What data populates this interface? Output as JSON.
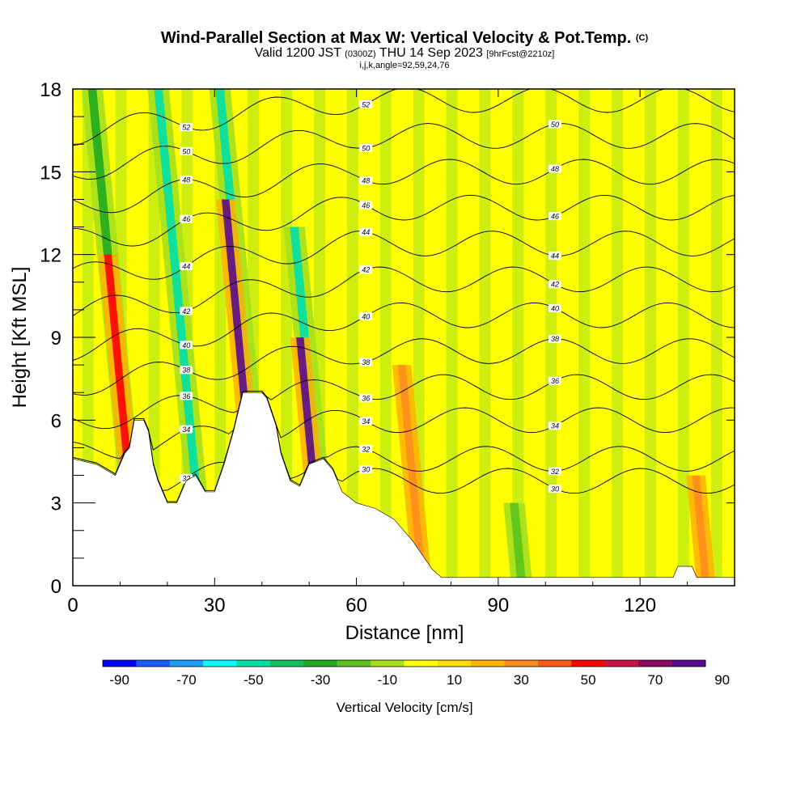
{
  "title": {
    "main": "Wind-Parallel Section at Max W: Vertical Velocity & Pot.Temp.",
    "main_suffix": "(C)",
    "valid_prefix": "Valid 1200 JST",
    "valid_utc": "(0300Z)",
    "valid_date": "THU 14 Sep 2023",
    "forecast": "[9hrFcst@2210z]",
    "params": "i,j,k,angle=92,59,24,76"
  },
  "colorbar": {
    "label": "Vertical Velocity [cm/s]",
    "tick_labels": [
      "-90",
      "-70",
      "-50",
      "-30",
      "-10",
      "10",
      "30",
      "50",
      "70",
      "90"
    ],
    "bins": [
      {
        "color": "#0000ff"
      },
      {
        "color": "#1a5cff"
      },
      {
        "color": "#1c9dff"
      },
      {
        "color": "#00ffff"
      },
      {
        "color": "#00e0a8"
      },
      {
        "color": "#10c060"
      },
      {
        "color": "#1faa1f"
      },
      {
        "color": "#5cc31c"
      },
      {
        "color": "#a6e01c"
      },
      {
        "color": "#ffff00"
      },
      {
        "color": "#ffdc00"
      },
      {
        "color": "#ffb400"
      },
      {
        "color": "#ff8c1e"
      },
      {
        "color": "#ff5a14"
      },
      {
        "color": "#ff0000"
      },
      {
        "color": "#c81446"
      },
      {
        "color": "#8c0a64"
      },
      {
        "color": "#5a0a8c"
      }
    ]
  },
  "chart_data": {
    "type": "heatmap",
    "xlabel": "Distance [nm]",
    "ylabel": "Height [Kft MSL]",
    "xlim": [
      0,
      140
    ],
    "ylim": [
      0,
      18
    ],
    "x_ticks": [
      0,
      30,
      60,
      90,
      120
    ],
    "y_ticks": [
      0,
      3,
      6,
      9,
      12,
      15,
      18
    ],
    "background_color": "#ffff00",
    "terrain": [
      [
        0,
        4.6
      ],
      [
        5,
        4.4
      ],
      [
        9,
        4.0
      ],
      [
        11,
        4.8
      ],
      [
        12,
        5.0
      ],
      [
        13,
        6.0
      ],
      [
        15,
        6.0
      ],
      [
        16,
        5.6
      ],
      [
        17,
        4.4
      ],
      [
        18,
        3.8
      ],
      [
        20,
        3.0
      ],
      [
        22,
        3.0
      ],
      [
        24,
        3.8
      ],
      [
        26,
        4.0
      ],
      [
        28,
        3.4
      ],
      [
        30,
        3.4
      ],
      [
        32,
        4.4
      ],
      [
        34,
        5.6
      ],
      [
        36,
        7.0
      ],
      [
        40,
        7.0
      ],
      [
        41,
        6.8
      ],
      [
        43,
        5.8
      ],
      [
        44,
        4.8
      ],
      [
        46,
        3.8
      ],
      [
        48,
        3.6
      ],
      [
        50,
        4.4
      ],
      [
        53,
        4.6
      ],
      [
        55,
        4.2
      ],
      [
        57,
        3.4
      ],
      [
        60,
        3.0
      ],
      [
        64,
        2.8
      ],
      [
        68,
        2.4
      ],
      [
        72,
        1.6
      ],
      [
        76,
        0.6
      ],
      [
        78,
        0.3
      ],
      [
        127,
        0.3
      ],
      [
        128,
        0.7
      ],
      [
        131,
        0.7
      ],
      [
        132,
        0.3
      ],
      [
        140,
        0.3
      ]
    ],
    "updraft_bands": [
      {
        "x": 14,
        "ytop": 12,
        "value": 50
      },
      {
        "x": 40,
        "ytop": 14,
        "value": 80
      },
      {
        "x": 53,
        "ytop": 9,
        "value": 80
      },
      {
        "x": 74,
        "ytop": 8,
        "value": 30
      },
      {
        "x": 134,
        "ytop": 4,
        "value": 30
      }
    ],
    "downdraft_bands": [
      {
        "x": 14,
        "ytop": 18,
        "value": -30
      },
      {
        "x": 28,
        "ytop": 18,
        "value": -50
      },
      {
        "x": 41,
        "ytop": 18,
        "value": -50
      },
      {
        "x": 54,
        "ytop": 13,
        "value": -50
      },
      {
        "x": 95,
        "ytop": 3,
        "value": -20
      }
    ],
    "isentropes": [
      {
        "label": "30",
        "height": 3.8
      },
      {
        "label": "32",
        "height": 4.6
      },
      {
        "label": "34",
        "height": 6.0
      },
      {
        "label": "36",
        "height": 7.2
      },
      {
        "label": "38",
        "height": 8.5
      },
      {
        "label": "40",
        "height": 9.8
      },
      {
        "label": "42",
        "height": 11.1
      },
      {
        "label": "44",
        "height": 12.4
      },
      {
        "label": "46",
        "height": 13.7
      },
      {
        "label": "48",
        "height": 15.0
      },
      {
        "label": "50",
        "height": 16.3
      },
      {
        "label": "52",
        "height": 17.6
      }
    ]
  }
}
